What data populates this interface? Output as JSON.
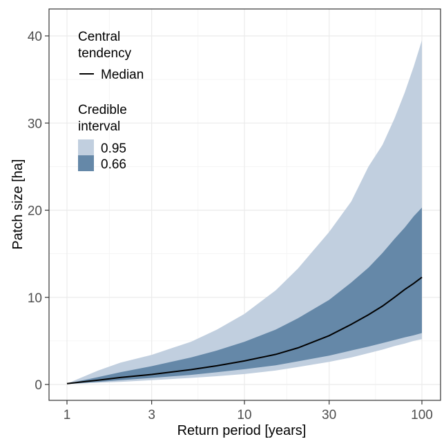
{
  "chart_data": {
    "type": "area",
    "xlabel": "Return period [years]",
    "ylabel": "Patch size [ha]",
    "x_scale": "log",
    "xlim": [
      1,
      100
    ],
    "ylim": [
      0,
      40
    ],
    "x_ticks": [
      1,
      3,
      10,
      30,
      100
    ],
    "x_tick_labels": [
      "1",
      "3",
      "10",
      "30",
      "100"
    ],
    "y_ticks": [
      0,
      10,
      20,
      30,
      40
    ],
    "y_tick_labels": [
      "0",
      "10",
      "20",
      "30",
      "40"
    ],
    "grid": true,
    "legend_position": "top-left",
    "x": [
      1,
      1.5,
      2,
      3,
      5,
      7,
      10,
      15,
      20,
      30,
      40,
      50,
      60,
      70,
      80,
      90,
      100
    ],
    "central": {
      "legend_title": "Central tendency",
      "series": [
        {
          "name": "Median",
          "color": "#000000",
          "values": [
            0.1,
            0.5,
            0.8,
            1.15,
            1.7,
            2.15,
            2.7,
            3.45,
            4.2,
            5.6,
            6.9,
            8.0,
            9.0,
            10.0,
            10.9,
            11.6,
            12.3
          ]
        }
      ]
    },
    "credible": {
      "legend_title": "Credible interval",
      "bands": [
        {
          "name": "0.95",
          "color": "#c1cfdf",
          "lower": [
            0.05,
            0.2,
            0.3,
            0.5,
            0.75,
            0.95,
            1.2,
            1.6,
            2.0,
            2.6,
            3.1,
            3.6,
            4.0,
            4.4,
            4.7,
            5.0,
            5.2
          ],
          "upper": [
            0.1,
            1.6,
            2.5,
            3.4,
            4.9,
            6.3,
            8.1,
            10.8,
            13.3,
            17.5,
            21.0,
            25.0,
            27.5,
            30.5,
            33.5,
            36.5,
            39.5
          ]
        },
        {
          "name": "0.66",
          "color": "#6588a8",
          "lower": [
            0.05,
            0.3,
            0.5,
            0.75,
            1.1,
            1.4,
            1.75,
            2.2,
            2.65,
            3.3,
            3.9,
            4.35,
            4.75,
            5.1,
            5.4,
            5.65,
            5.9
          ],
          "upper": [
            0.1,
            0.85,
            1.4,
            2.1,
            3.1,
            3.9,
            4.9,
            6.3,
            7.6,
            9.7,
            11.7,
            13.4,
            15.1,
            16.7,
            18.0,
            19.3,
            20.3
          ]
        }
      ]
    }
  }
}
